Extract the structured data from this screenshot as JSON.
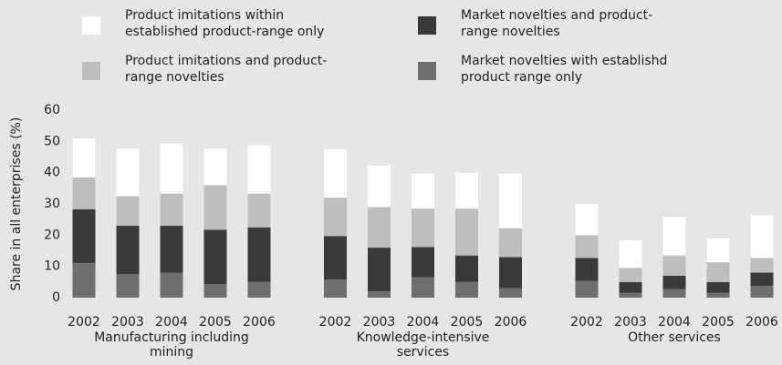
{
  "chart_data": {
    "type": "stacked_bar",
    "ylabel": "Share in all enterprises (%)",
    "ylim": [
      0,
      60
    ],
    "yticks": [
      0,
      10,
      20,
      30,
      40,
      50,
      60
    ],
    "groups": [
      {
        "name": "Manufacturing including mining",
        "categories": [
          "2002",
          "2003",
          "2004",
          "2005",
          "2006"
        ]
      },
      {
        "name": "Knowledge-intensive services",
        "categories": [
          "2002",
          "2003",
          "2004",
          "2005",
          "2006"
        ]
      },
      {
        "name": "Other services",
        "categories": [
          "2002",
          "2003",
          "2004",
          "2005",
          "2006"
        ]
      }
    ],
    "series": [
      {
        "name": "Market novelties with establishd product range only",
        "color": "#6e6e6e",
        "values": [
          11,
          7.5,
          8,
          4.3,
          5,
          5.8,
          2,
          6.5,
          5,
          3,
          5.3,
          1.5,
          2.7,
          1.5,
          3.8
        ]
      },
      {
        "name": "Market novelties and product-range novelties",
        "color": "#3a3a3a",
        "values": [
          17.3,
          15.5,
          15,
          17.4,
          17.5,
          13.9,
          14,
          9.7,
          8.5,
          10,
          7.4,
          3.5,
          4.3,
          3.5,
          4.2
        ]
      },
      {
        "name": "Product imitations and product-range novelties",
        "color": "#bebebe",
        "values": [
          10.2,
          9.5,
          10.3,
          14.3,
          10.8,
          12.3,
          13,
          12.3,
          15,
          9.2,
          7.3,
          4.5,
          6.5,
          6.3,
          4.7
        ]
      },
      {
        "name": "Product imitations within established product-range only",
        "color": "#ffffff",
        "values": [
          12.5,
          15.3,
          16,
          11.8,
          15.4,
          15.5,
          13.3,
          11.2,
          11.5,
          17.5,
          10,
          8.8,
          12.3,
          7.7,
          13.6
        ]
      }
    ]
  }
}
